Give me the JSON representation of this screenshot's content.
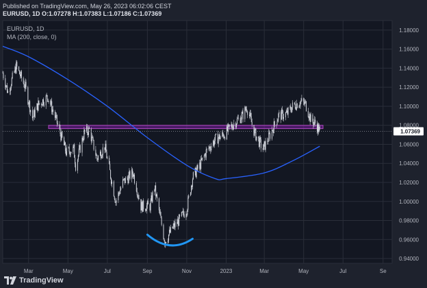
{
  "header": {
    "published": "Published on TradingView.com, May 26, 2023 06:02:06 CEST",
    "symbol_interval": "EURUSD, 1D",
    "open": "O:1.07278",
    "high": "H:1.07383",
    "low": "L:1.07186",
    "close": "C:1.07369"
  },
  "footer": {
    "brand": "TradingView"
  },
  "colors": {
    "background": "#131722",
    "grid": "#2a2e39",
    "candle": "#d1d4dc",
    "ma_line": "#2962ff",
    "zone_fill": "#7b1fa2",
    "zone_stroke": "#ab47bc",
    "curve": "#2196f3",
    "last_price_bg": "#ffffff",
    "text": "#b2b5be"
  },
  "chart_data": {
    "type": "candlestick",
    "symbol": "EURUSD",
    "interval": "1D",
    "legend": {
      "symbol": "EURUSD, 1D",
      "indicator": "MA (200, close, 0)"
    },
    "y_ticks": [
      "1.18000",
      "1.16000",
      "1.14000",
      "1.12000",
      "1.10000",
      "1.08000",
      "1.06000",
      "1.04000",
      "1.02000",
      "1.00000",
      "0.98000",
      "0.96000",
      "0.94000"
    ],
    "ylim": [
      0.935,
      1.19
    ],
    "x_ticks": [
      "Mar",
      "May",
      "Jul",
      "Sep",
      "Nov",
      "2023",
      "Mar",
      "May",
      "Jul",
      "Se"
    ],
    "x_tick_dates": [
      "2022-03-01",
      "2022-05-01",
      "2022-07-01",
      "2022-09-01",
      "2022-11-01",
      "2023-01-01",
      "2023-03-01",
      "2023-05-01",
      "2023-07-01",
      "2023-09-01"
    ],
    "xlim": [
      "2022-01-20",
      "2023-09-15"
    ],
    "last_price": "1.07369",
    "price_path": [
      [
        "2022-01-20",
        1.135
      ],
      [
        "2022-01-28",
        1.115
      ],
      [
        "2022-02-10",
        1.142
      ],
      [
        "2022-02-24",
        1.12
      ],
      [
        "2022-03-07",
        1.088
      ],
      [
        "2022-03-16",
        1.102
      ],
      [
        "2022-03-31",
        1.11
      ],
      [
        "2022-04-13",
        1.085
      ],
      [
        "2022-04-28",
        1.052
      ],
      [
        "2022-05-10",
        1.055
      ],
      [
        "2022-05-13",
        1.038
      ],
      [
        "2022-05-26",
        1.072
      ],
      [
        "2022-06-03",
        1.075
      ],
      [
        "2022-06-15",
        1.045
      ],
      [
        "2022-06-27",
        1.058
      ],
      [
        "2022-07-14",
        1.0
      ],
      [
        "2022-07-25",
        1.02
      ],
      [
        "2022-08-10",
        1.03
      ],
      [
        "2022-08-22",
        0.995
      ],
      [
        "2022-09-05",
        0.995
      ],
      [
        "2022-09-12",
        1.015
      ],
      [
        "2022-09-28",
        0.958
      ],
      [
        "2022-10-10",
        0.972
      ],
      [
        "2022-10-20",
        0.98
      ],
      [
        "2022-11-01",
        0.992
      ],
      [
        "2022-11-10",
        1.025
      ],
      [
        "2022-11-23",
        1.04
      ],
      [
        "2022-12-01",
        1.052
      ],
      [
        "2022-12-15",
        1.065
      ],
      [
        "2022-12-30",
        1.071
      ],
      [
        "2023-01-13",
        1.082
      ],
      [
        "2023-01-26",
        1.09
      ],
      [
        "2023-02-02",
        1.099
      ],
      [
        "2023-02-14",
        1.072
      ],
      [
        "2023-02-27",
        1.055
      ],
      [
        "2023-03-10",
        1.07
      ],
      [
        "2023-03-23",
        1.09
      ],
      [
        "2023-04-05",
        1.092
      ],
      [
        "2023-04-14",
        1.1
      ],
      [
        "2023-04-26",
        1.105
      ],
      [
        "2023-05-04",
        1.102
      ],
      [
        "2023-05-12",
        1.086
      ],
      [
        "2023-05-19",
        1.082
      ],
      [
        "2023-05-26",
        1.0737
      ]
    ],
    "ma200": [
      [
        "2022-01-20",
        1.163
      ],
      [
        "2022-03-01",
        1.152
      ],
      [
        "2022-05-01",
        1.128
      ],
      [
        "2022-07-01",
        1.1
      ],
      [
        "2022-09-01",
        1.067
      ],
      [
        "2022-11-01",
        1.038
      ],
      [
        "2022-12-15",
        1.024
      ],
      [
        "2023-01-01",
        1.024
      ],
      [
        "2023-03-01",
        1.03
      ],
      [
        "2023-04-15",
        1.043
      ],
      [
        "2023-05-26",
        1.058
      ]
    ],
    "resistance_zone": {
      "from": "2022-04-01",
      "to": "2023-05-31",
      "low": 1.0765,
      "high": 1.08
    },
    "annotation_curve": {
      "from": "2022-09-01",
      "to": "2022-11-10",
      "level": 0.955
    }
  }
}
